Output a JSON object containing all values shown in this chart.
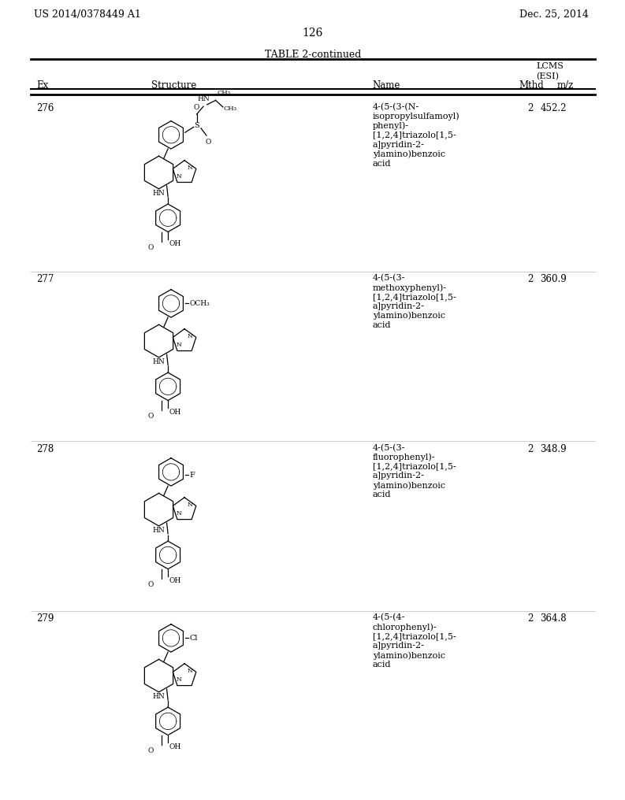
{
  "page_header_left": "US 2014/0378449 A1",
  "page_header_right": "Dec. 25, 2014",
  "page_number": "126",
  "table_title": "TABLE 2-continued",
  "col_headers": [
    "Ex",
    "Structure",
    "Name",
    "Mthd",
    "LCMS\n(ESI)\nm/z"
  ],
  "background_color": "#ffffff",
  "text_color": "#000000",
  "rows": [
    {
      "ex": "276",
      "name": "4-(5-(3-(N-\nisopropylsulfamoyl)\nphenyl)-\n[1,2,4]triazolo[1,5-\na]pyridin-2-\nylamino)benzoic\nacid",
      "mthd": "2",
      "mz": "452.2"
    },
    {
      "ex": "277",
      "name": "4-(5-(3-\nmethoxyphenyl)-\n[1,2,4]triazolo[1,5-\na]pyridin-2-\nylamino)benzoic\nacid",
      "mthd": "2",
      "mz": "360.9"
    },
    {
      "ex": "278",
      "name": "4-(5-(3-\nfluorophenyl)-\n[1,2,4]triazolo[1,5-\na]pyridin-2-\nylamino)benzoic\nacid",
      "mthd": "2",
      "mz": "348.9"
    },
    {
      "ex": "279",
      "name": "4-(5-(4-\nchlorophenyl)-\n[1,2,4]triazolo[1,5-\na]pyridin-2-\nylamino)benzoic\nacid",
      "mthd": "2",
      "mz": "364.8"
    }
  ]
}
